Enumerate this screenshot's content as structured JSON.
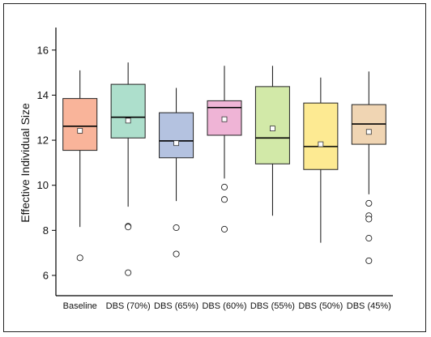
{
  "chart_data": {
    "type": "box",
    "ylabel": "Effective Individual Size",
    "xlabel": "",
    "ylim": [
      5.1,
      17.0
    ],
    "yticks": [
      6,
      8,
      10,
      12,
      14,
      16
    ],
    "ytick_labels": [
      "6",
      "8",
      "10",
      "12",
      "14",
      "16"
    ],
    "categories": [
      "Baseline",
      "DBS (70%)",
      "DBS (65%)",
      "DBS (60%)",
      "DBS (55%)",
      "DBS (50%)",
      "DBS (45%)"
    ],
    "boxes": [
      {
        "category": "Baseline",
        "whisker_low": 8.15,
        "q1": 11.55,
        "median": 12.62,
        "q3": 13.85,
        "whisker_high": 15.1,
        "mean": 12.42,
        "outliers": [
          6.78
        ],
        "color": "#f9b49a"
      },
      {
        "category": "DBS (70%)",
        "whisker_low": 9.05,
        "q1": 12.1,
        "median": 13.02,
        "q3": 14.48,
        "whisker_high": 15.45,
        "mean": 12.87,
        "outliers": [
          8.18,
          8.15,
          6.12
        ],
        "color": "#addfcc"
      },
      {
        "category": "DBS (65%)",
        "whisker_low": 9.3,
        "q1": 11.22,
        "median": 11.97,
        "q3": 13.22,
        "whisker_high": 14.32,
        "mean": 11.87,
        "outliers": [
          8.12,
          6.95
        ],
        "color": "#b4c2e0"
      },
      {
        "category": "DBS (60%)",
        "whisker_low": 10.3,
        "q1": 12.22,
        "median": 13.45,
        "q3": 13.75,
        "whisker_high": 15.3,
        "mean": 12.93,
        "outliers": [
          9.92,
          9.37,
          8.05
        ],
        "color": "#efb4d6"
      },
      {
        "category": "DBS (55%)",
        "whisker_low": 8.65,
        "q1": 10.95,
        "median": 12.1,
        "q3": 14.38,
        "whisker_high": 15.3,
        "mean": 12.52,
        "outliers": [],
        "color": "#d2e9a8"
      },
      {
        "category": "DBS (50%)",
        "whisker_low": 7.45,
        "q1": 10.7,
        "median": 11.72,
        "q3": 13.65,
        "whisker_high": 14.78,
        "mean": 11.82,
        "outliers": [],
        "color": "#fdea92"
      },
      {
        "category": "DBS (45%)",
        "whisker_low": 9.6,
        "q1": 11.82,
        "median": 12.72,
        "q3": 13.58,
        "whisker_high": 15.05,
        "mean": 12.37,
        "outliers": [
          9.2,
          8.65,
          8.5,
          7.65,
          6.65
        ],
        "color": "#f0d5b3"
      }
    ],
    "grid": false,
    "legend": "none",
    "mean_marker": "open-square"
  }
}
